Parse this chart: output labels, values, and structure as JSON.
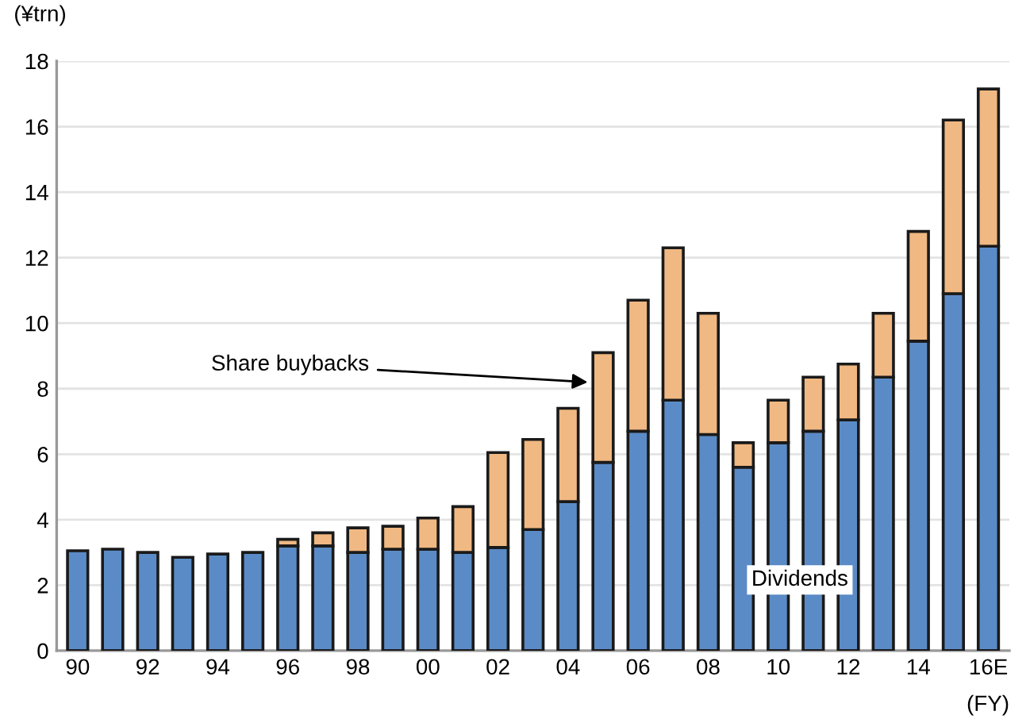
{
  "chart_data": {
    "type": "bar",
    "stacked": true,
    "ylabel": "(¥trn)",
    "xlabel": "(FY)",
    "categories": [
      "90",
      null,
      "92",
      null,
      "94",
      null,
      "96",
      null,
      "98",
      null,
      "00",
      null,
      "02",
      null,
      "04",
      null,
      "06",
      null,
      "08",
      null,
      "10",
      null,
      "12",
      null,
      "14",
      null,
      "16E"
    ],
    "series": [
      {
        "name": "Dividends",
        "color": "#5b8bc6",
        "values": [
          3.05,
          3.1,
          3.0,
          2.85,
          2.95,
          3.0,
          3.2,
          3.2,
          3.0,
          3.1,
          3.1,
          3.0,
          3.15,
          3.7,
          4.55,
          5.75,
          6.7,
          7.65,
          6.6,
          5.6,
          6.35,
          6.7,
          7.05,
          8.35,
          9.45,
          10.9,
          12.35
        ]
      },
      {
        "name": "Share buybacks",
        "color": "#f0b882",
        "values": [
          null,
          null,
          null,
          null,
          null,
          null,
          0.2,
          0.4,
          0.75,
          0.7,
          0.95,
          1.4,
          2.9,
          2.75,
          2.85,
          3.35,
          4.0,
          4.65,
          3.7,
          0.75,
          1.3,
          1.65,
          1.7,
          1.95,
          3.35,
          5.3,
          4.8
        ]
      }
    ],
    "ylim": [
      0,
      18
    ],
    "yticks": [
      0,
      2,
      4,
      6,
      8,
      10,
      12,
      14,
      16,
      18
    ],
    "grid": "y",
    "legend": false
  }
}
